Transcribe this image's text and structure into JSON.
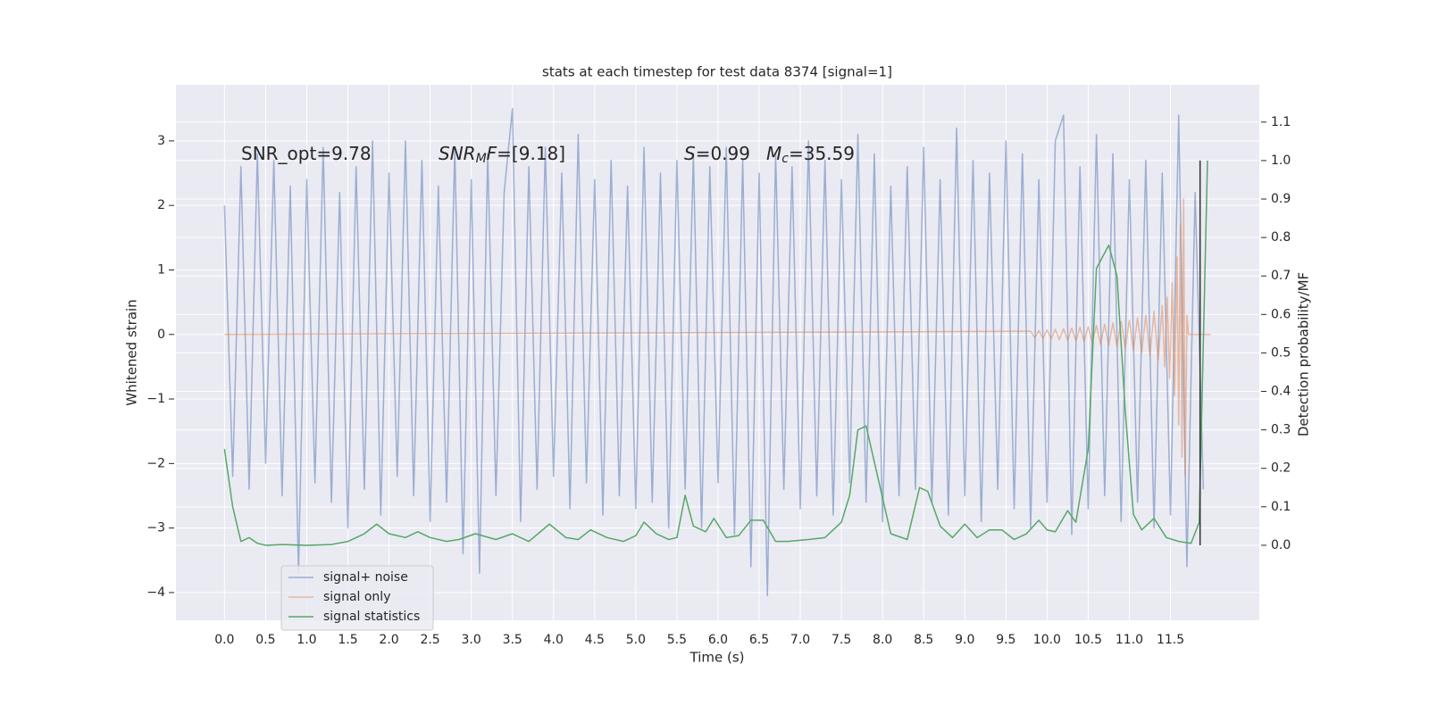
{
  "chart_data": {
    "type": "line",
    "title": "stats at each timestep for test data 8374 [signal=1]",
    "xlabel": "Time (s)",
    "ylabel": "Whitened strain",
    "y2label": "Detection probability/MF",
    "xlim": [
      -0.59,
      12.58
    ],
    "ylim": [
      -4.43,
      3.87
    ],
    "y2lim": [
      -0.195,
      1.197
    ],
    "xticks": [
      {
        "value": 0,
        "label": "0.0"
      },
      0.5,
      {
        "value": 1,
        "label": "1.0"
      },
      1.5,
      {
        "value": 2,
        "label": "2.0"
      },
      2.5,
      {
        "value": 3,
        "label": "3.0"
      },
      3.5,
      {
        "value": 4,
        "label": "4.0"
      },
      4.5,
      {
        "value": 5,
        "label": "5.0"
      },
      5.5,
      {
        "value": 6,
        "label": "6.0"
      },
      6.5,
      {
        "value": 7,
        "label": "7.0"
      },
      7.5,
      {
        "value": 8,
        "label": "8.0"
      },
      8.5,
      {
        "value": 9,
        "label": "9.0"
      },
      9.5,
      {
        "value": 10,
        "label": "10.0"
      },
      10.5,
      {
        "value": 11,
        "label": "11.0"
      },
      11.5
    ],
    "yticks": [
      {
        "value": -4,
        "label": "−4"
      },
      {
        "value": -3,
        "label": "−3"
      },
      {
        "value": -2,
        "label": "−2"
      },
      {
        "value": -1,
        "label": "−1"
      },
      0,
      1,
      2,
      3
    ],
    "y2ticks": [
      {
        "value": 0,
        "label": "0.0"
      },
      0.1,
      0.2,
      0.3,
      0.4,
      0.5,
      0.6,
      0.7,
      0.8,
      0.9,
      {
        "value": 1,
        "label": "1.0"
      },
      1.1
    ],
    "grid": true,
    "legend": "lower left",
    "annotations": [
      {
        "segments": [
          {
            "text": "SNR_opt=9.78"
          }
        ]
      },
      {
        "segments": [
          {
            "text": "SNR",
            "italic": true
          },
          {
            "text": "M",
            "italic": true,
            "sub": true
          },
          {
            "text": "F",
            "italic": true
          },
          {
            "text": "=[9.18]"
          }
        ]
      },
      {
        "segments": [
          {
            "text": "S",
            "italic": true
          },
          {
            "text": "=0.99"
          }
        ]
      },
      {
        "segments": [
          {
            "text": "M",
            "italic": true
          },
          {
            "text": "c",
            "italic": true,
            "sub": true
          },
          {
            "text": "=35.59"
          }
        ]
      }
    ],
    "series": [
      {
        "name": "signal+ noise",
        "color": "#4c72b0",
        "alpha": 0.5,
        "axis": "y",
        "x": [
          0,
          0.1,
          0.2,
          0.3,
          0.4,
          0.5,
          0.6,
          0.7,
          0.8,
          0.9,
          1.0,
          1.1,
          1.2,
          1.3,
          1.4,
          1.5,
          1.6,
          1.7,
          1.8,
          1.9,
          2.0,
          2.1,
          2.2,
          2.3,
          2.4,
          2.5,
          2.6,
          2.7,
          2.8,
          2.9,
          3.0,
          3.1,
          3.2,
          3.3,
          3.4,
          3.5,
          3.6,
          3.7,
          3.8,
          3.9,
          4.0,
          4.1,
          4.2,
          4.3,
          4.4,
          4.5,
          4.6,
          4.7,
          4.8,
          4.9,
          5.0,
          5.1,
          5.2,
          5.3,
          5.4,
          5.5,
          5.6,
          5.7,
          5.8,
          5.9,
          6.0,
          6.1,
          6.2,
          6.3,
          6.4,
          6.5,
          6.6,
          6.7,
          6.8,
          6.9,
          7.0,
          7.1,
          7.2,
          7.3,
          7.4,
          7.5,
          7.6,
          7.7,
          7.8,
          7.9,
          8.0,
          8.1,
          8.2,
          8.3,
          8.4,
          8.5,
          8.6,
          8.7,
          8.8,
          8.9,
          9.0,
          9.1,
          9.2,
          9.3,
          9.4,
          9.5,
          9.6,
          9.7,
          9.8,
          9.9,
          10.0,
          10.1,
          10.2,
          10.3,
          10.4,
          10.5,
          10.6,
          10.7,
          10.8,
          10.9,
          11.0,
          11.1,
          11.2,
          11.3,
          11.4,
          11.5,
          11.6,
          11.7,
          11.8,
          11.9
        ],
        "values": [
          2.0,
          -2.2,
          2.6,
          -2.4,
          2.8,
          -2.0,
          2.7,
          -2.5,
          2.3,
          -3.7,
          2.4,
          -2.3,
          2.9,
          -2.6,
          2.2,
          -3.0,
          2.6,
          -2.4,
          3.0,
          -2.8,
          2.5,
          -2.2,
          3.0,
          -2.5,
          2.7,
          -2.9,
          2.3,
          -2.6,
          2.9,
          -3.4,
          2.4,
          -3.7,
          2.8,
          -2.5,
          2.2,
          3.5,
          -2.9,
          2.6,
          -2.4,
          2.9,
          -2.2,
          2.5,
          -2.7,
          3.1,
          -2.3,
          2.4,
          -2.8,
          2.7,
          -2.5,
          2.3,
          -2.7,
          2.9,
          -2.6,
          2.5,
          -3.0,
          2.7,
          -2.4,
          2.8,
          -3.0,
          2.6,
          -2.3,
          2.9,
          -3.1,
          2.7,
          -3.6,
          2.5,
          -4.05,
          2.8,
          -2.4,
          2.6,
          -2.7,
          3.0,
          -2.5,
          2.7,
          -2.8,
          2.4,
          -2.3,
          3.1,
          -2.6,
          2.8,
          -2.9,
          2.3,
          -2.5,
          2.6,
          -2.4,
          2.9,
          -2.6,
          2.4,
          -2.8,
          3.2,
          -2.5,
          2.7,
          -2.9,
          2.5,
          -2.4,
          3.0,
          -2.7,
          2.8,
          -3.0,
          2.4,
          -2.6,
          3.0,
          3.4,
          -3.1,
          2.6,
          -2.7,
          3.1,
          -2.5,
          2.8,
          -2.9,
          2.4,
          -2.6,
          2.7,
          -3.0,
          2.5,
          -2.8,
          3.4,
          -3.6,
          2.2,
          -2.4
        ]
      },
      {
        "name": "signal only",
        "color": "#dd8452",
        "alpha": 0.5,
        "axis": "y",
        "x": [
          0,
          9.8,
          9.85,
          9.9,
          9.95,
          10.0,
          10.05,
          10.1,
          10.15,
          10.2,
          10.25,
          10.3,
          10.35,
          10.4,
          10.45,
          10.5,
          10.55,
          10.6,
          10.65,
          10.7,
          10.75,
          10.8,
          10.85,
          10.9,
          10.95,
          11.0,
          11.05,
          11.1,
          11.15,
          11.2,
          11.25,
          11.3,
          11.35,
          11.4,
          11.43,
          11.46,
          11.49,
          11.52,
          11.55,
          11.58,
          11.6,
          11.62,
          11.64,
          11.66,
          11.68,
          11.7,
          11.72,
          11.99
        ],
        "values": [
          0,
          0.05,
          -0.05,
          0.06,
          -0.06,
          0.07,
          -0.07,
          0.08,
          -0.08,
          0.09,
          -0.09,
          0.1,
          -0.1,
          0.11,
          -0.11,
          0.12,
          -0.13,
          0.14,
          -0.15,
          0.16,
          -0.17,
          0.18,
          -0.19,
          0.2,
          -0.21,
          0.22,
          -0.24,
          0.26,
          -0.28,
          0.3,
          -0.33,
          0.36,
          -0.4,
          0.45,
          -0.5,
          0.58,
          -0.68,
          0.8,
          -0.95,
          1.2,
          -1.4,
          1.7,
          -1.9,
          2.1,
          -2.2,
          0.3,
          0,
          0
        ]
      },
      {
        "name": "signal statistics",
        "color": "#55a868",
        "alpha": 1,
        "axis": "y2",
        "x": [
          0,
          0.1,
          0.2,
          0.3,
          0.4,
          0.5,
          0.7,
          1.0,
          1.3,
          1.5,
          1.7,
          1.85,
          2.0,
          2.2,
          2.35,
          2.5,
          2.7,
          2.85,
          3.05,
          3.3,
          3.5,
          3.7,
          3.95,
          4.15,
          4.3,
          4.45,
          4.65,
          4.85,
          5.0,
          5.1,
          5.25,
          5.4,
          5.5,
          5.6,
          5.7,
          5.85,
          5.95,
          6.1,
          6.25,
          6.4,
          6.55,
          6.7,
          6.85,
          7.1,
          7.3,
          7.5,
          7.6,
          7.7,
          7.8,
          7.95,
          8.1,
          8.3,
          8.45,
          8.55,
          8.7,
          8.85,
          9.0,
          9.15,
          9.3,
          9.45,
          9.6,
          9.75,
          9.9,
          10.0,
          10.1,
          10.25,
          10.35,
          10.5,
          10.6,
          10.75,
          10.85,
          10.95,
          11.05,
          11.15,
          11.3,
          11.45,
          11.6,
          11.75,
          11.85,
          11.95
        ],
        "values": [
          0.25,
          0.1,
          0.01,
          0.02,
          0.005,
          0.0,
          0.002,
          0.0,
          0.002,
          0.01,
          0.03,
          0.055,
          0.03,
          0.02,
          0.035,
          0.02,
          0.01,
          0.015,
          0.03,
          0.015,
          0.03,
          0.01,
          0.055,
          0.02,
          0.015,
          0.04,
          0.02,
          0.01,
          0.025,
          0.06,
          0.03,
          0.015,
          0.02,
          0.13,
          0.05,
          0.035,
          0.07,
          0.02,
          0.025,
          0.065,
          0.065,
          0.01,
          0.01,
          0.015,
          0.02,
          0.06,
          0.13,
          0.3,
          0.31,
          0.17,
          0.03,
          0.015,
          0.15,
          0.14,
          0.05,
          0.02,
          0.055,
          0.02,
          0.04,
          0.04,
          0.015,
          0.03,
          0.065,
          0.04,
          0.035,
          0.09,
          0.06,
          0.25,
          0.72,
          0.78,
          0.7,
          0.35,
          0.08,
          0.04,
          0.07,
          0.02,
          0.01,
          0.005,
          0.06,
          1.0
        ]
      }
    ],
    "vlines": [
      {
        "x": 11.86,
        "ymin": 0,
        "ymax": 1,
        "axis": "y2",
        "color": "#333333"
      }
    ]
  }
}
